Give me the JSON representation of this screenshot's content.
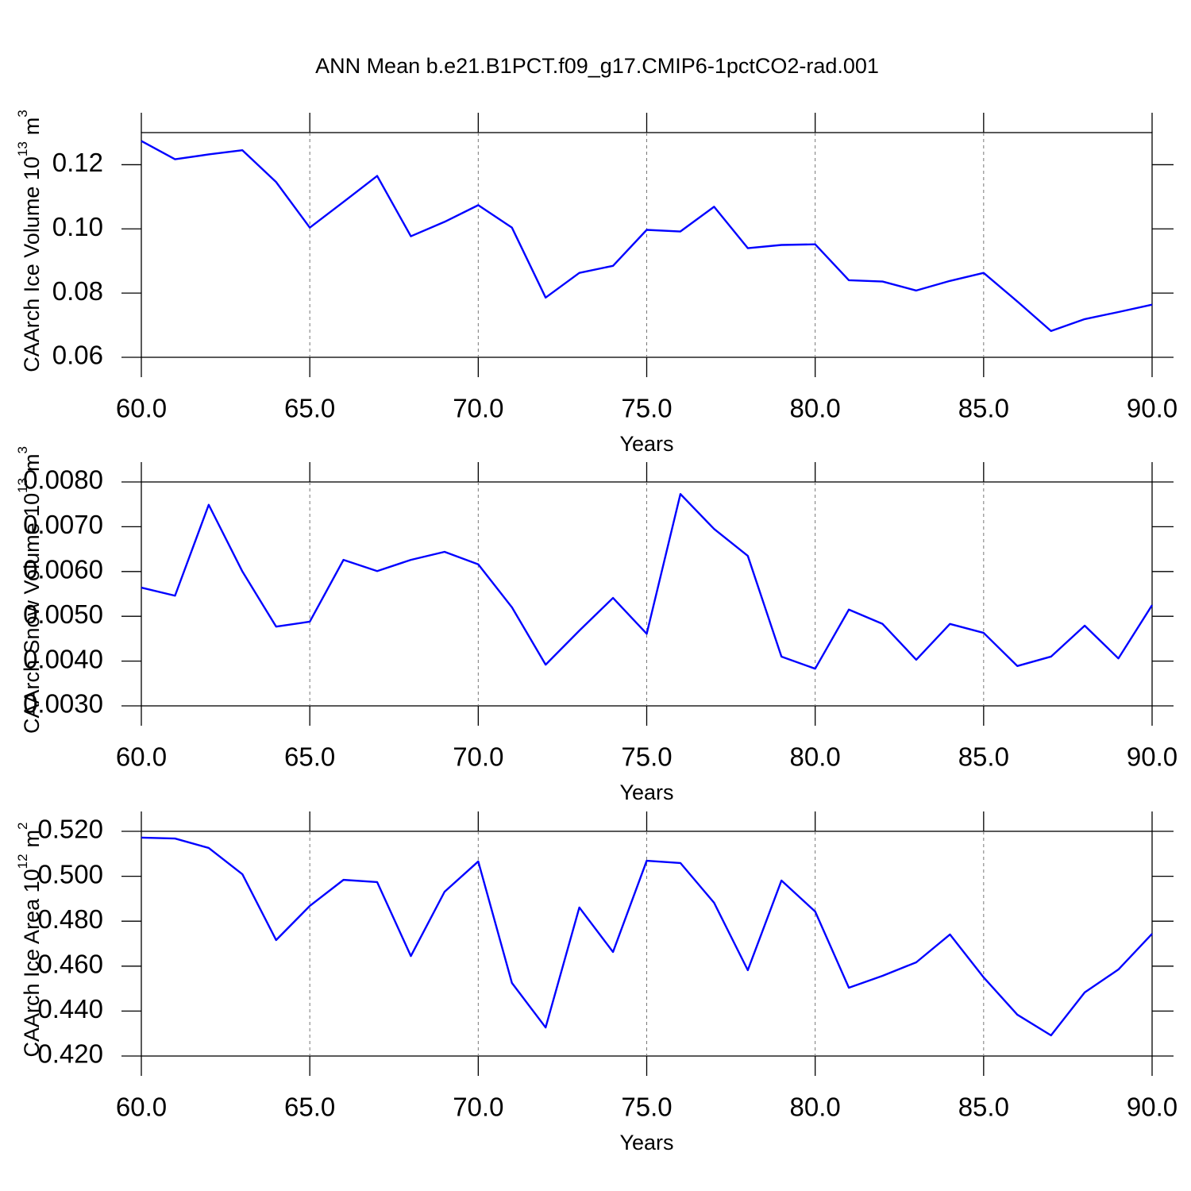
{
  "chart_data": [
    {
      "type": "line",
      "title": "ANN Mean b.e21.B1PCT.f09_g17.CMIP6-1pctCO2-rad.001",
      "xlabel": "Years",
      "ylabel": {
        "text": "CAArch Ice Volume 10",
        "exp": "13",
        "unit": "m",
        "unit_exp": "3"
      },
      "x": [
        60,
        61,
        62,
        63,
        64,
        65,
        66,
        67,
        68,
        69,
        70,
        71,
        72,
        73,
        74,
        75,
        76,
        77,
        78,
        79,
        80,
        81,
        82,
        83,
        84,
        85,
        86,
        87,
        88,
        89,
        90
      ],
      "series": [
        {
          "color": "#0000ff",
          "values": [
            0.1274,
            0.1217,
            0.1232,
            0.1245,
            0.1146,
            0.1004,
            0.1084,
            0.1165,
            0.0977,
            0.1022,
            0.1074,
            0.1004,
            0.0786,
            0.0863,
            0.0885,
            0.0997,
            0.0992,
            0.1069,
            0.094,
            0.095,
            0.0952,
            0.084,
            0.0836,
            0.0808,
            0.0838,
            0.0863,
            0.0774,
            0.0682,
            0.0719,
            0.0741,
            0.0764
          ]
        }
      ],
      "xlim": [
        60,
        90
      ],
      "xticks": [
        {
          "value": 60,
          "label": "60.0"
        },
        {
          "value": 65,
          "label": "65.0"
        },
        {
          "value": 70,
          "label": "70.0"
        },
        {
          "value": 75,
          "label": "75.0"
        },
        {
          "value": 80,
          "label": "80.0"
        },
        {
          "value": 85,
          "label": "85.0"
        },
        {
          "value": 90,
          "label": "90.0"
        }
      ],
      "ylim": [
        0.06,
        0.13
      ],
      "yticks": [
        0.06,
        0.08,
        {
          "value": 0.1,
          "label": "0.10"
        },
        0.12
      ],
      "grid": true
    },
    {
      "type": "line",
      "xlabel": "Years",
      "ylabel": {
        "text": "CAArch Snow Volume 10",
        "exp": "13",
        "unit": "m",
        "unit_exp": "3"
      },
      "x": [
        60,
        61,
        62,
        63,
        64,
        65,
        66,
        67,
        68,
        69,
        70,
        71,
        72,
        73,
        74,
        75,
        76,
        77,
        78,
        79,
        80,
        81,
        82,
        83,
        84,
        85,
        86,
        87,
        88,
        89,
        90
      ],
      "series": [
        {
          "color": "#0000ff",
          "values": [
            0.00564,
            0.00546,
            0.00749,
            0.006,
            0.00477,
            0.00488,
            0.00626,
            0.00601,
            0.00626,
            0.00644,
            0.00616,
            0.0052,
            0.00392,
            0.00468,
            0.00541,
            0.00461,
            0.00773,
            0.00695,
            0.00635,
            0.0041,
            0.00383,
            0.00515,
            0.00483,
            0.00403,
            0.00483,
            0.00463,
            0.00389,
            0.0041,
            0.00479,
            0.00406,
            0.00525
          ]
        }
      ],
      "xlim": [
        60,
        90
      ],
      "xticks": [
        {
          "value": 60,
          "label": "60.0"
        },
        {
          "value": 65,
          "label": "65.0"
        },
        {
          "value": 70,
          "label": "70.0"
        },
        {
          "value": 75,
          "label": "75.0"
        },
        {
          "value": 80,
          "label": "80.0"
        },
        {
          "value": 85,
          "label": "85.0"
        },
        {
          "value": 90,
          "label": "90.0"
        }
      ],
      "ylim": [
        0.003,
        0.008
      ],
      "yticks": [
        {
          "value": 0.003,
          "label": "0.0030"
        },
        {
          "value": 0.004,
          "label": "0.0040"
        },
        {
          "value": 0.005,
          "label": "0.0050"
        },
        {
          "value": 0.006,
          "label": "0.0060"
        },
        {
          "value": 0.007,
          "label": "0.0070"
        },
        {
          "value": 0.008,
          "label": "0.0080"
        }
      ],
      "grid": true
    },
    {
      "type": "line",
      "xlabel": "Years",
      "ylabel": {
        "text": "CAArch Ice Area 10",
        "exp": "12",
        "unit": "m",
        "unit_exp": "2"
      },
      "x": [
        60,
        61,
        62,
        63,
        64,
        65,
        66,
        67,
        68,
        69,
        70,
        71,
        72,
        73,
        74,
        75,
        76,
        77,
        78,
        79,
        80,
        81,
        82,
        83,
        84,
        85,
        86,
        87,
        88,
        89,
        90
      ],
      "series": [
        {
          "color": "#0000ff",
          "values": [
            0.5172,
            0.5168,
            0.5126,
            0.5009,
            0.4716,
            0.4868,
            0.4984,
            0.4974,
            0.4645,
            0.4931,
            0.5066,
            0.4525,
            0.4327,
            0.4861,
            0.4663,
            0.5069,
            0.5059,
            0.4882,
            0.4582,
            0.4981,
            0.4843,
            0.4504,
            0.4557,
            0.4617,
            0.4741,
            0.455,
            0.4384,
            0.4292,
            0.4483,
            0.4585,
            0.4744
          ]
        }
      ],
      "xlim": [
        60,
        90
      ],
      "xticks": [
        {
          "value": 60,
          "label": "60.0"
        },
        {
          "value": 65,
          "label": "65.0"
        },
        {
          "value": 70,
          "label": "70.0"
        },
        {
          "value": 75,
          "label": "75.0"
        },
        {
          "value": 80,
          "label": "80.0"
        },
        {
          "value": 85,
          "label": "85.0"
        },
        {
          "value": 90,
          "label": "90.0"
        }
      ],
      "ylim": [
        0.42,
        0.52
      ],
      "yticks": [
        {
          "value": 0.42,
          "label": "0.420"
        },
        {
          "value": 0.44,
          "label": "0.440"
        },
        {
          "value": 0.46,
          "label": "0.460"
        },
        {
          "value": 0.48,
          "label": "0.480"
        },
        {
          "value": 0.5,
          "label": "0.500"
        },
        {
          "value": 0.52,
          "label": "0.520"
        }
      ],
      "grid": true
    }
  ]
}
